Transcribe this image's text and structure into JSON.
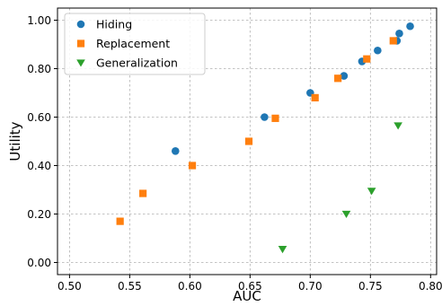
{
  "chart_data": {
    "type": "scatter",
    "title": "",
    "xlabel": "AUC",
    "ylabel": "Utility",
    "xlim": [
      0.49,
      0.805
    ],
    "ylim": [
      -0.05,
      1.05
    ],
    "xticks": [
      0.5,
      0.55,
      0.6,
      0.65,
      0.7,
      0.75,
      0.8
    ],
    "xtick_labels": [
      "0.50",
      "0.55",
      "0.60",
      "0.65",
      "0.70",
      "0.75",
      "0.80"
    ],
    "yticks": [
      0.0,
      0.2,
      0.4,
      0.6,
      0.8,
      1.0
    ],
    "ytick_labels": [
      "0.00",
      "0.20",
      "0.40",
      "0.60",
      "0.80",
      "1.00"
    ],
    "grid": true,
    "legend_position": "top-left",
    "series": [
      {
        "name": "Hiding",
        "marker": "circle",
        "color": "#1f77b4",
        "points": [
          {
            "x": 0.588,
            "y": 0.46
          },
          {
            "x": 0.662,
            "y": 0.6
          },
          {
            "x": 0.7,
            "y": 0.7
          },
          {
            "x": 0.728,
            "y": 0.77
          },
          {
            "x": 0.743,
            "y": 0.83
          },
          {
            "x": 0.756,
            "y": 0.875
          },
          {
            "x": 0.772,
            "y": 0.915
          },
          {
            "x": 0.774,
            "y": 0.945
          },
          {
            "x": 0.783,
            "y": 0.975
          }
        ]
      },
      {
        "name": "Replacement",
        "marker": "square",
        "color": "#ff7f0e",
        "points": [
          {
            "x": 0.542,
            "y": 0.17
          },
          {
            "x": 0.561,
            "y": 0.285
          },
          {
            "x": 0.602,
            "y": 0.4
          },
          {
            "x": 0.649,
            "y": 0.5
          },
          {
            "x": 0.671,
            "y": 0.595
          },
          {
            "x": 0.704,
            "y": 0.68
          },
          {
            "x": 0.723,
            "y": 0.76
          },
          {
            "x": 0.747,
            "y": 0.84
          },
          {
            "x": 0.769,
            "y": 0.915
          }
        ]
      },
      {
        "name": "Generalization",
        "marker": "triangle-down",
        "color": "#2ca02c",
        "points": [
          {
            "x": 0.677,
            "y": 0.055
          },
          {
            "x": 0.73,
            "y": 0.2
          },
          {
            "x": 0.751,
            "y": 0.295
          },
          {
            "x": 0.773,
            "y": 0.565
          }
        ]
      }
    ]
  }
}
